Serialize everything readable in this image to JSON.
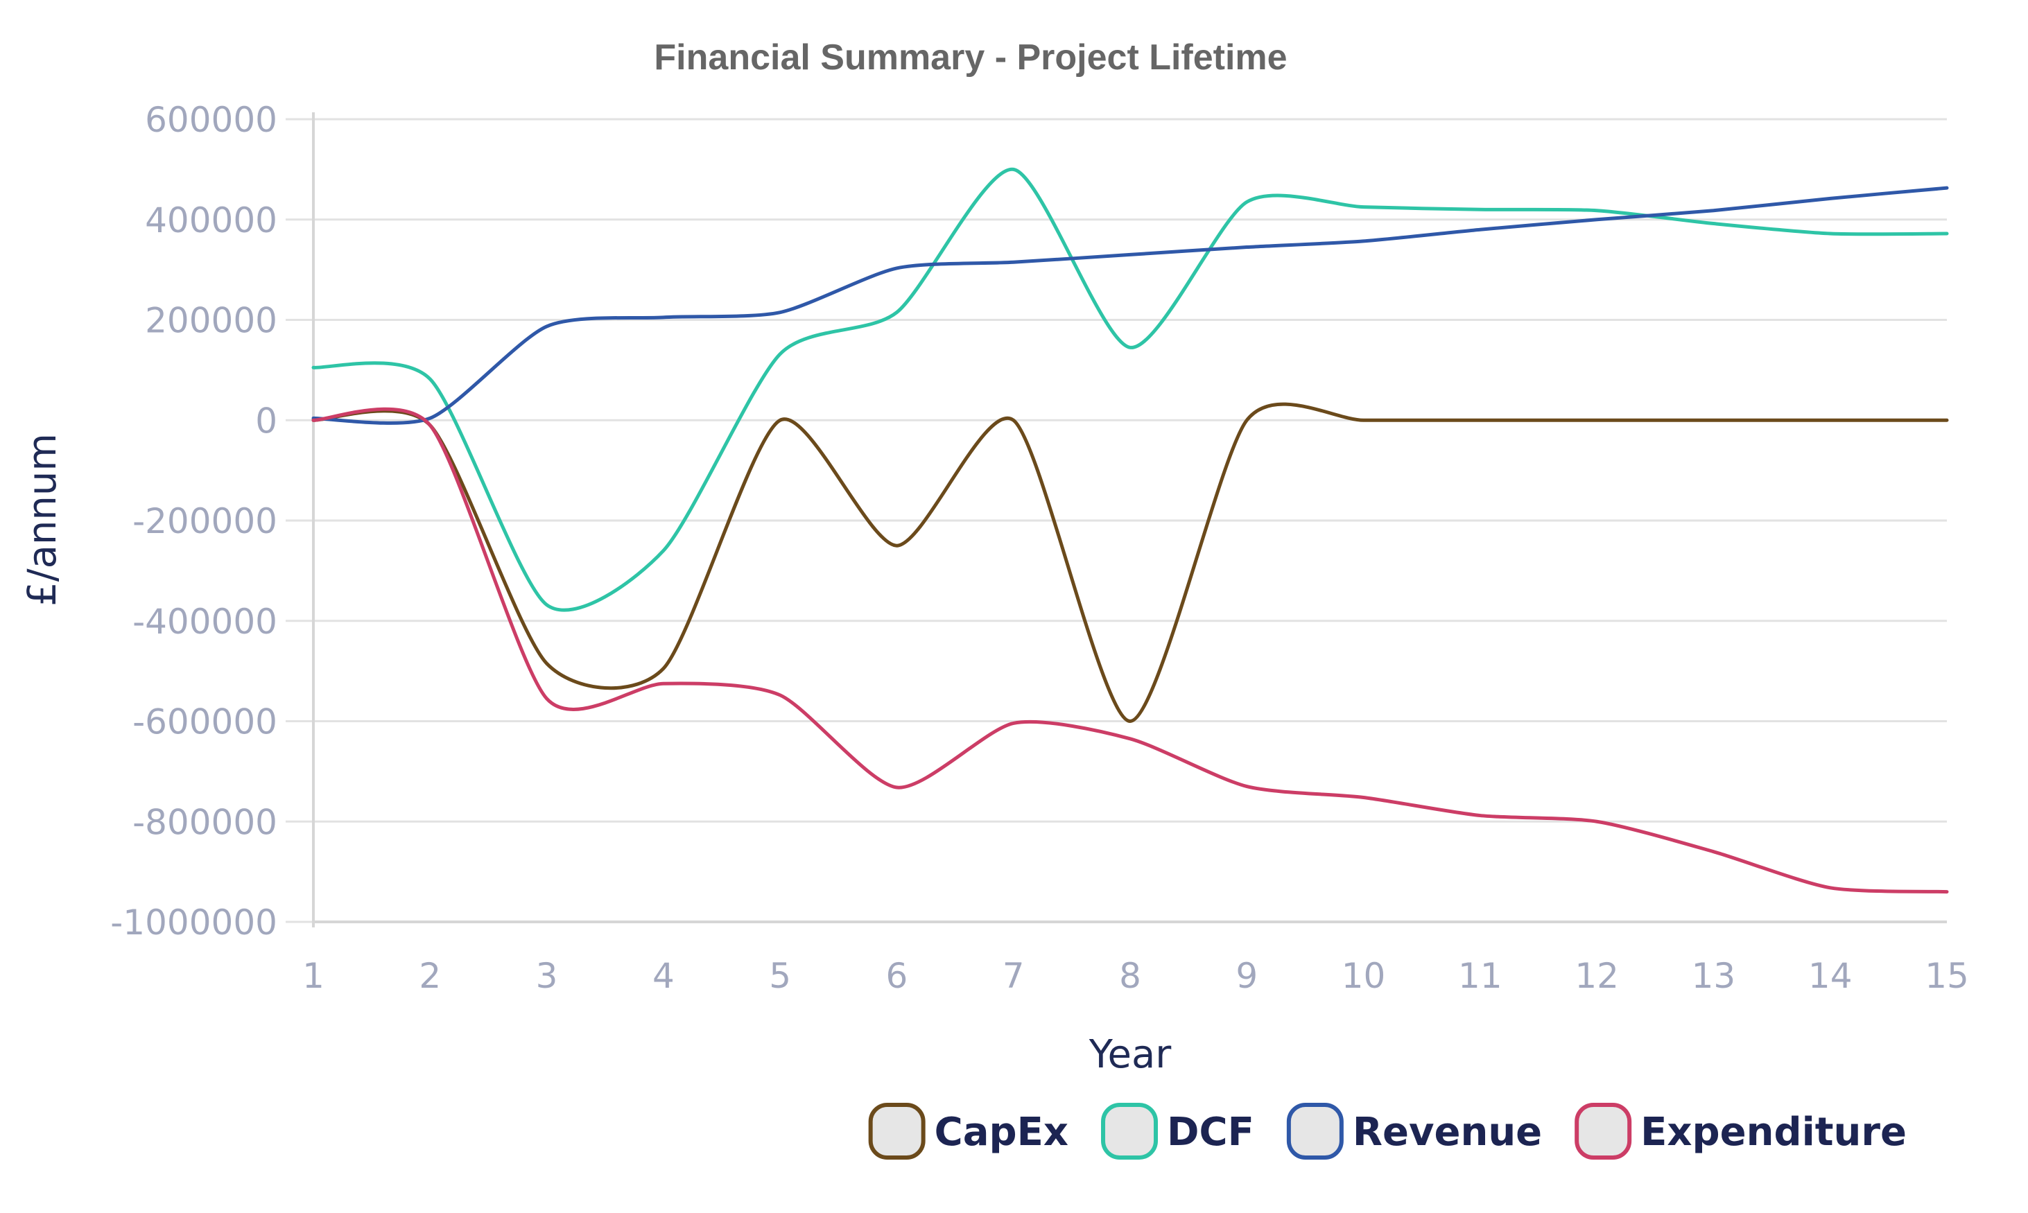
{
  "chart_data": {
    "type": "line",
    "title": "Financial Summary - Project Lifetime",
    "xlabel": "Year",
    "ylabel": "£/annum",
    "x": [
      1,
      2,
      3,
      4,
      5,
      6,
      7,
      8,
      9,
      10,
      11,
      12,
      13,
      14,
      15
    ],
    "ylim": [
      -1000000,
      600000
    ],
    "yticks": [
      600000,
      400000,
      200000,
      0,
      -200000,
      -400000,
      -600000,
      -800000,
      -1000000
    ],
    "grid": true,
    "legend_position": "bottom-right",
    "series": [
      {
        "name": "CapEx",
        "color": "#6b4a1b",
        "values": [
          0,
          -10000,
          -485000,
          -495000,
          0,
          -250000,
          0,
          -600000,
          0,
          0,
          0,
          0,
          0,
          0,
          0
        ]
      },
      {
        "name": "DCF",
        "color": "#2ec4a6",
        "values": [
          105000,
          82000,
          -368000,
          -260000,
          132000,
          215000,
          500000,
          145000,
          435000,
          425000,
          420000,
          418000,
          392000,
          372000,
          372000
        ]
      },
      {
        "name": "Revenue",
        "color": "#2f58a8",
        "values": [
          4000,
          4000,
          187000,
          205000,
          215000,
          303000,
          315000,
          330000,
          345000,
          357000,
          380000,
          400000,
          418000,
          442000,
          463000
        ]
      },
      {
        "name": "Expenditure",
        "color": "#cc3d66",
        "values": [
          0,
          -10000,
          -555000,
          -525000,
          -548000,
          -732000,
          -604000,
          -635000,
          -730000,
          -752000,
          -788000,
          -800000,
          -860000,
          -932000,
          -940000
        ]
      }
    ]
  }
}
